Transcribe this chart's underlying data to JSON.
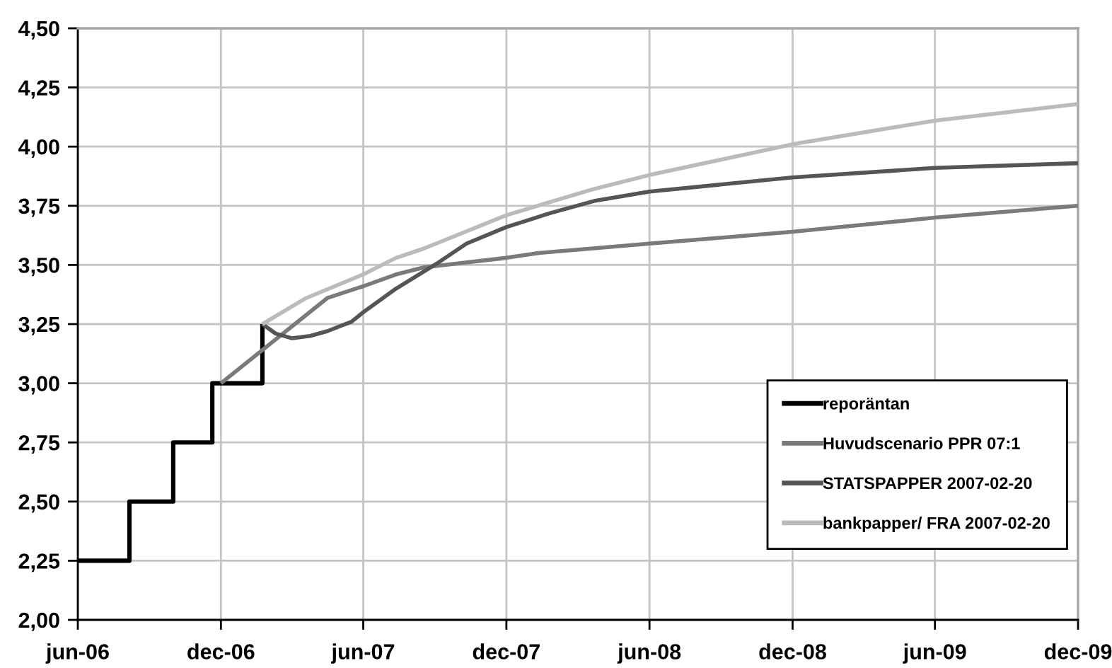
{
  "chart_data": {
    "type": "line",
    "xlim": [
      "2006-06-01",
      "2009-12-01"
    ],
    "xticks": [
      {
        "value": "2006-06-01",
        "label": "jun-06"
      },
      {
        "value": "2006-12-01",
        "label": "dec-06"
      },
      {
        "value": "2007-06-01",
        "label": "jun-07"
      },
      {
        "value": "2007-12-01",
        "label": "dec-07"
      },
      {
        "value": "2008-06-01",
        "label": "jun-08"
      },
      {
        "value": "2008-12-01",
        "label": "dec-08"
      },
      {
        "value": "2009-06-01",
        "label": "jun-09"
      },
      {
        "value": "2009-12-01",
        "label": "dec-09"
      }
    ],
    "ylim": [
      2.0,
      4.5
    ],
    "yticks": [
      {
        "value": 2.0,
        "label": "2,00"
      },
      {
        "value": 2.25,
        "label": "2,25"
      },
      {
        "value": 2.5,
        "label": "2,50"
      },
      {
        "value": 2.75,
        "label": "2,75"
      },
      {
        "value": 3.0,
        "label": "3,00"
      },
      {
        "value": 3.25,
        "label": "3,25"
      },
      {
        "value": 3.5,
        "label": "3,50"
      },
      {
        "value": 3.75,
        "label": "3,75"
      },
      {
        "value": 4.0,
        "label": "4,00"
      },
      {
        "value": 4.25,
        "label": "4,25"
      },
      {
        "value": 4.5,
        "label": "4,50"
      }
    ],
    "grid": true,
    "legend": "bottom right",
    "line_style": "solid",
    "series": [
      {
        "name": "reporäntan",
        "type": "step",
        "color": "#000000",
        "x": [
          "2006-06-01",
          "2006-08-06",
          "2006-10-01",
          "2006-11-20",
          "2007-01-23"
        ],
        "values": [
          2.25,
          2.5,
          2.75,
          3.0,
          3.25
        ]
      },
      {
        "name": "Huvudscenario PPR 07:1",
        "color": "#7a7a7a",
        "x": [
          "2006-12-01",
          "2007-04-16",
          "2007-06-01",
          "2007-07-13",
          "2007-08-18",
          "2007-12-01",
          "2008-01-10",
          "2008-03-21",
          "2008-06-01",
          "2008-12-01",
          "2009-06-01",
          "2009-12-01"
        ],
        "values": [
          3.0,
          3.36,
          3.41,
          3.46,
          3.49,
          3.53,
          3.55,
          3.57,
          3.59,
          3.64,
          3.7,
          3.75
        ]
      },
      {
        "name": "STATSPAPPER 2007-02-20",
        "color": "#555555",
        "x": [
          "2007-01-23",
          "2007-02-09",
          "2007-03-02",
          "2007-03-25",
          "2007-04-16",
          "2007-05-17",
          "2007-06-01",
          "2007-07-13",
          "2007-09-05",
          "2007-10-11",
          "2007-12-01",
          "2008-01-27",
          "2008-03-22",
          "2008-06-01",
          "2008-12-01",
          "2009-06-01",
          "2009-12-01"
        ],
        "values": [
          3.25,
          3.21,
          3.19,
          3.2,
          3.22,
          3.26,
          3.3,
          3.4,
          3.51,
          3.59,
          3.66,
          3.72,
          3.77,
          3.81,
          3.87,
          3.91,
          3.93
        ]
      },
      {
        "name": "bankpapper/ FRA 2007-02-20",
        "color": "#bbbbbb",
        "x": [
          "2007-01-23",
          "2007-03-20",
          "2007-06-01",
          "2007-07-13",
          "2007-08-18",
          "2007-12-01",
          "2008-01-10",
          "2008-03-21",
          "2008-06-01",
          "2008-12-01",
          "2009-06-01",
          "2009-12-01"
        ],
        "values": [
          3.25,
          3.36,
          3.46,
          3.53,
          3.57,
          3.71,
          3.75,
          3.82,
          3.88,
          4.01,
          4.11,
          4.18
        ]
      }
    ]
  }
}
